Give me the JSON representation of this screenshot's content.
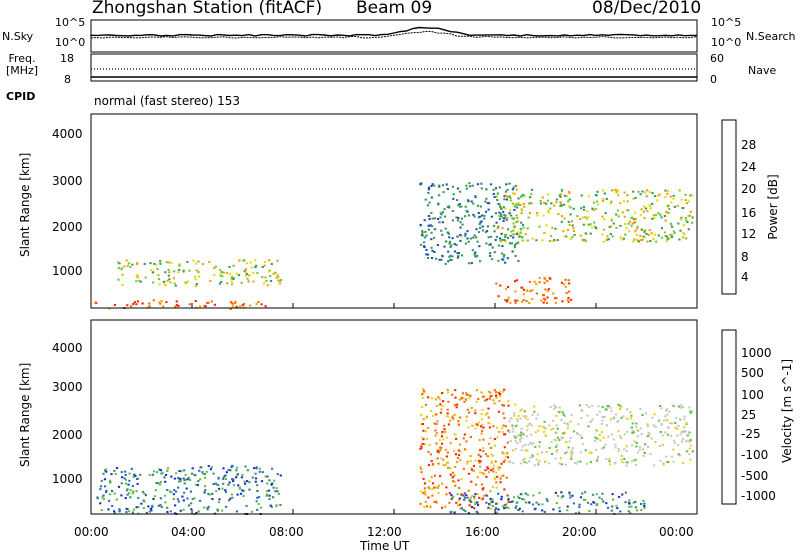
{
  "header": {
    "station": "Zhongshan Station (fitACF)",
    "beam": "Beam 09",
    "date": "08/Dec/2010"
  },
  "top_panel": {
    "left_label": "N.Sky",
    "right_label": "N.Search",
    "left_ticks": [
      "10^5",
      "10^0"
    ],
    "right_ticks": [
      "10^5",
      "10^0"
    ]
  },
  "freq_panel": {
    "left_label_line1": "Freq.",
    "left_label_line2": "[MHz]",
    "right_label": "Nave",
    "left_ticks": [
      "18",
      "8"
    ],
    "right_ticks": [
      "60",
      "0"
    ]
  },
  "cpid": {
    "label": "CPID",
    "text": "normal (fast stereo) 153"
  },
  "x_axis": {
    "title": "Time UT",
    "ticks": [
      "00:00",
      "04:00",
      "08:00",
      "12:00",
      "16:00",
      "20:00",
      "00:00"
    ]
  },
  "chart_data": [
    {
      "type": "heatmap",
      "panel": "power",
      "ylabel": "Slant Range [km]",
      "y_ticks": [
        "1000",
        "2000",
        "3000",
        "4000"
      ],
      "ylim": [
        180,
        4600
      ],
      "xlim_hours": [
        0,
        24
      ],
      "colorbar": {
        "title": "Power [dB]",
        "ticks": [
          "4",
          "8",
          "12",
          "16",
          "20",
          "24",
          "28"
        ],
        "range": [
          0,
          30
        ]
      },
      "features": [
        {
          "x_range_h": [
            0.1,
            6.9
          ],
          "y_range_km": [
            180,
            380
          ],
          "level": "high"
        },
        {
          "x_range_h": [
            1.0,
            7.5
          ],
          "y_range_km": [
            700,
            1300
          ],
          "level": "medium"
        },
        {
          "x_range_h": [
            13.0,
            17.0
          ],
          "y_range_km": [
            1200,
            3050
          ],
          "level": "low"
        },
        {
          "x_range_h": [
            16.0,
            23.8
          ],
          "y_range_km": [
            1700,
            2900
          ],
          "level": "medium"
        },
        {
          "x_range_h": [
            16.0,
            19.0
          ],
          "y_range_km": [
            300,
            900
          ],
          "level": "high"
        }
      ]
    },
    {
      "type": "heatmap",
      "panel": "velocity",
      "ylabel": "Slant Range [km]",
      "y_ticks": [
        "1000",
        "2000",
        "3000",
        "4000"
      ],
      "ylim": [
        180,
        4600
      ],
      "xlim_hours": [
        0,
        24
      ],
      "colorbar": {
        "title": "Velocity [m s^-1]",
        "ticks": [
          "1000",
          "500",
          "100",
          "25",
          "-25",
          "-100",
          "-500",
          "-1000"
        ],
        "range": [
          -1000,
          1000
        ]
      },
      "features": [
        {
          "x_range_h": [
            0.2,
            7.5
          ],
          "y_range_km": [
            200,
            1300
          ],
          "level": "positive"
        },
        {
          "x_range_h": [
            13.0,
            16.5
          ],
          "y_range_km": [
            300,
            3050
          ],
          "level": "negative"
        },
        {
          "x_range_h": [
            16.5,
            23.8
          ],
          "y_range_km": [
            1300,
            2700
          ],
          "level": "near-zero"
        },
        {
          "x_range_h": [
            14.0,
            22.0
          ],
          "y_range_km": [
            200,
            700
          ],
          "level": "positive"
        }
      ]
    }
  ],
  "colors": {
    "power_scale": [
      "#0000ff",
      "#1f4fb0",
      "#3d8a6a",
      "#2ea04d",
      "#6fc83a",
      "#e8d800",
      "#f5a000",
      "#ff6a00",
      "#ff2000"
    ],
    "velocity_scale": [
      "#1030d0",
      "#2a6ab0",
      "#3c8a6e",
      "#5cc040",
      "#c8c8c0",
      "#e8d020",
      "#f0a010",
      "#f07000",
      "#ff2000"
    ]
  }
}
